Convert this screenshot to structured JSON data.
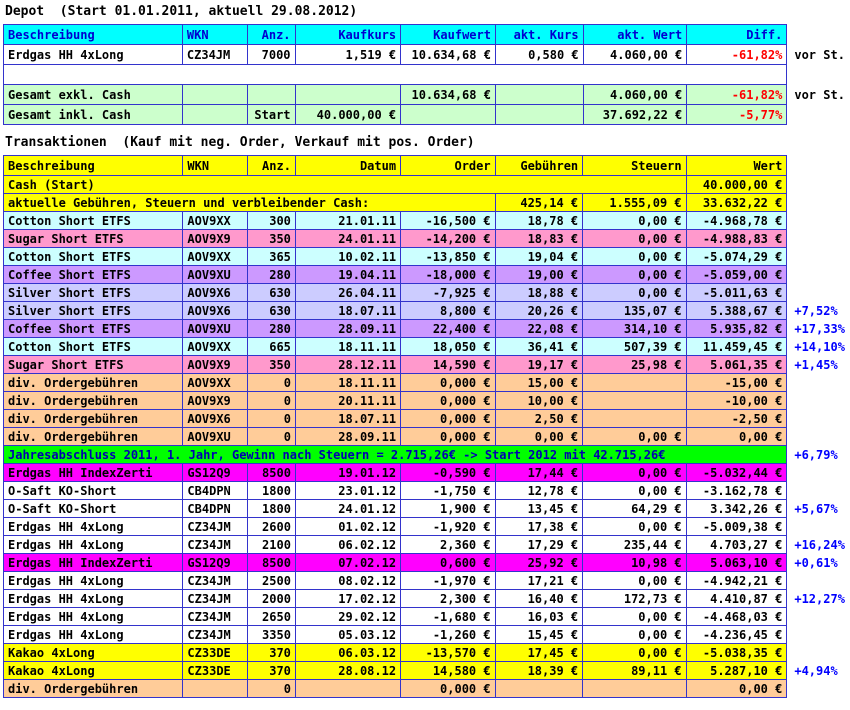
{
  "colors": {
    "grid": "#3333CC",
    "depot_header_bg": "#00FFFF",
    "depot_header_text": "#0000D0",
    "trans_header_bg": "#FFFF00",
    "trans_header_text": "#000000",
    "negative": "#FF0000",
    "percent_note": "#0000FF",
    "note_dark": "#000000"
  },
  "depot": {
    "title": "Depot  (Start 01.01.2011, aktuell 29.08.2012)",
    "columns": [
      "Beschreibung",
      "WKN",
      "Anz.",
      "Kaufkurs",
      "Kaufwert",
      "akt. Kurs",
      "akt. Wert",
      "Diff."
    ],
    "rows": [
      {
        "bg": "#FFFFFF",
        "cells": [
          "Erdgas HH 4xLong",
          "CZ34JM",
          "7000",
          "1,519 €",
          "10.634,68 €",
          "0,580 €",
          "4.060,00 €",
          "-61,82%"
        ],
        "note": "vor St."
      },
      {
        "bg": "#FFFFFF",
        "layout": "blank",
        "cells": [
          ""
        ]
      },
      {
        "bg": "#CCFFCC",
        "cells": [
          "Gesamt exkl. Cash",
          "",
          "",
          "",
          "10.634,68 €",
          "",
          "4.060,00 €",
          "-61,82%"
        ],
        "note": "vor St."
      },
      {
        "bg": "#CCFFCC",
        "cells": [
          "Gesamt inkl. Cash",
          "",
          "Start",
          "40.000,00 €",
          "",
          "",
          "37.692,22 €",
          "-5,77%"
        ]
      }
    ]
  },
  "transactions": {
    "title": "Transaktionen  (Kauf mit neg. Order, Verkauf mit pos. Order)",
    "columns": [
      "Beschreibung",
      "WKN",
      "Anz.",
      "Datum",
      "Order",
      "Gebühren",
      "Steuern",
      "Wert"
    ],
    "rows": [
      {
        "bg": "#FFFF00",
        "layout": "span7",
        "cells": [
          "Cash (Start)",
          "40.000,00 €"
        ]
      },
      {
        "bg": "#FFFF00",
        "layout": "span5",
        "cells": [
          "aktuelle Gebühren, Steuern und verbleibender Cash:",
          "425,14 €",
          "1.555,09 €",
          "33.632,22 €"
        ]
      },
      {
        "bg": "#CCFFFF",
        "cells": [
          "Cotton Short ETFS",
          "AOV9XX",
          "300",
          "21.01.11",
          "-16,500 €",
          "18,78 €",
          "0,00 €",
          "-4.968,78 €"
        ]
      },
      {
        "bg": "#FF99CC",
        "cells": [
          "Sugar Short ETFS",
          "AOV9X9",
          "350",
          "24.01.11",
          "-14,200 €",
          "18,83 €",
          "0,00 €",
          "-4.988,83 €"
        ]
      },
      {
        "bg": "#CCFFFF",
        "cells": [
          "Cotton Short ETFS",
          "AOV9XX",
          "365",
          "10.02.11",
          "-13,850 €",
          "19,04 €",
          "0,00 €",
          "-5.074,29 €"
        ]
      },
      {
        "bg": "#CC99FF",
        "cells": [
          "Coffee Short ETFS",
          "AOV9XU",
          "280",
          "19.04.11",
          "-18,000 €",
          "19,00 €",
          "0,00 €",
          "-5.059,00 €"
        ]
      },
      {
        "bg": "#CCCCFF",
        "cells": [
          "Silver Short ETFS",
          "AOV9X6",
          "630",
          "26.04.11",
          "-7,925 €",
          "18,88 €",
          "0,00 €",
          "-5.011,63 €"
        ]
      },
      {
        "bg": "#CCCCFF",
        "cells": [
          "Silver Short ETFS",
          "AOV9X6",
          "630",
          "18.07.11",
          "8,800 €",
          "20,26 €",
          "135,07 €",
          "5.388,67 €"
        ],
        "note": "+7,52%"
      },
      {
        "bg": "#CC99FF",
        "cells": [
          "Coffee Short ETFS",
          "AOV9XU",
          "280",
          "28.09.11",
          "22,400 €",
          "22,08 €",
          "314,10 €",
          "5.935,82 €"
        ],
        "note": "+17,33%"
      },
      {
        "bg": "#CCFFFF",
        "cells": [
          "Cotton Short ETFS",
          "AOV9XX",
          "665",
          "18.11.11",
          "18,050 €",
          "36,41 €",
          "507,39 €",
          "11.459,45 €"
        ],
        "note": "+14,10%"
      },
      {
        "bg": "#FF99CC",
        "cells": [
          "Sugar Short ETFS",
          "AOV9X9",
          "350",
          "28.12.11",
          "14,590 €",
          "19,17 €",
          "25,98 €",
          "5.061,35 €"
        ],
        "note": "+1,45%"
      },
      {
        "bg": "#FFCC99",
        "cells": [
          "div. Ordergebühren",
          "AOV9XX",
          "0",
          "18.11.11",
          "0,000 €",
          "15,00 €",
          "",
          "-15,00 €"
        ]
      },
      {
        "bg": "#FFCC99",
        "cells": [
          "div. Ordergebühren",
          "AOV9X9",
          "0",
          "20.11.11",
          "0,000 €",
          "10,00 €",
          "",
          "-10,00 €"
        ]
      },
      {
        "bg": "#FFCC99",
        "cells": [
          "div. Ordergebühren",
          "AOV9X6",
          "0",
          "18.07.11",
          "0,000 €",
          "2,50 €",
          "",
          "-2,50 €"
        ]
      },
      {
        "bg": "#FFCC99",
        "cells": [
          "div. Ordergebühren",
          "AOV9XU",
          "0",
          "28.09.11",
          "0,000 €",
          "0,00 €",
          "0,00 €",
          "0,00 €"
        ]
      },
      {
        "bg": "#00FF00",
        "fg": "#0000B0",
        "layout": "full",
        "cells": [
          "Jahresabschluss 2011, 1. Jahr, Gewinn nach Steuern = 2.715,26€ -> Start 2012 mit 42.715,26€"
        ],
        "note": "+6,79%"
      },
      {
        "bg": "#FF00FF",
        "cells": [
          "Erdgas HH IndexZerti",
          "GS12Q9",
          "8500",
          "19.01.12",
          "-0,590 €",
          "17,44 €",
          "0,00 €",
          "-5.032,44 €"
        ]
      },
      {
        "bg": "#FFFFFF",
        "cells": [
          "O-Saft KO-Short",
          "CB4DPN",
          "1800",
          "23.01.12",
          "-1,750 €",
          "12,78 €",
          "0,00 €",
          "-3.162,78 €"
        ]
      },
      {
        "bg": "#FFFFFF",
        "cells": [
          "O-Saft KO-Short",
          "CB4DPN",
          "1800",
          "24.01.12",
          "1,900 €",
          "13,45 €",
          "64,29 €",
          "3.342,26 €"
        ],
        "note": "+5,67%"
      },
      {
        "bg": "#FFFFFF",
        "cells": [
          "Erdgas HH 4xLong",
          "CZ34JM",
          "2600",
          "01.02.12",
          "-1,920 €",
          "17,38 €",
          "0,00 €",
          "-5.009,38 €"
        ]
      },
      {
        "bg": "#FFFFFF",
        "cells": [
          "Erdgas HH 4xLong",
          "CZ34JM",
          "2100",
          "06.02.12",
          "2,360 €",
          "17,29 €",
          "235,44 €",
          "4.703,27 €"
        ],
        "note": "+16,24%"
      },
      {
        "bg": "#FF00FF",
        "cells": [
          "Erdgas HH IndexZerti",
          "GS12Q9",
          "8500",
          "07.02.12",
          "0,600 €",
          "25,92 €",
          "10,98 €",
          "5.063,10 €"
        ],
        "note": "+0,61%"
      },
      {
        "bg": "#FFFFFF",
        "cells": [
          "Erdgas HH 4xLong",
          "CZ34JM",
          "2500",
          "08.02.12",
          "-1,970 €",
          "17,21 €",
          "0,00 €",
          "-4.942,21 €"
        ]
      },
      {
        "bg": "#FFFFFF",
        "cells": [
          "Erdgas HH 4xLong",
          "CZ34JM",
          "2000",
          "17.02.12",
          "2,300 €",
          "16,40 €",
          "172,73 €",
          "4.410,87 €"
        ],
        "note": "+12,27%"
      },
      {
        "bg": "#FFFFFF",
        "cells": [
          "Erdgas HH 4xLong",
          "CZ34JM",
          "2650",
          "29.02.12",
          "-1,680 €",
          "16,03 €",
          "0,00 €",
          "-4.468,03 €"
        ]
      },
      {
        "bg": "#FFFFFF",
        "cells": [
          "Erdgas HH 4xLong",
          "CZ34JM",
          "3350",
          "05.03.12",
          "-1,260 €",
          "15,45 €",
          "0,00 €",
          "-4.236,45 €"
        ]
      },
      {
        "bg": "#FFFF00",
        "cells": [
          "Kakao 4xLong",
          "CZ33DE",
          "370",
          "06.03.12",
          "-13,570 €",
          "17,45 €",
          "0,00 €",
          "-5.038,35 €"
        ]
      },
      {
        "bg": "#FFFF00",
        "cells": [
          "Kakao 4xLong",
          "CZ33DE",
          "370",
          "28.08.12",
          "14,580 €",
          "18,39 €",
          "89,11 €",
          "5.287,10 €"
        ],
        "note": "+4,94%"
      },
      {
        "bg": "#FFCC99",
        "cells": [
          "div. Ordergebühren",
          "",
          "0",
          "",
          "0,000 €",
          "",
          "",
          "0,00 €"
        ]
      }
    ]
  }
}
